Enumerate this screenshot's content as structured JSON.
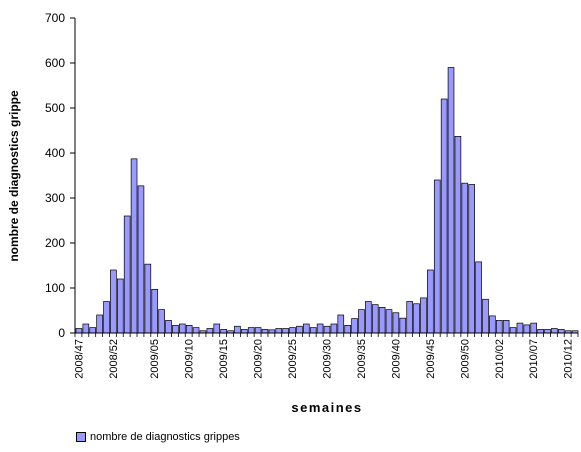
{
  "chart_data": {
    "type": "bar",
    "xlabel": "semaines",
    "ylabel": "nombre de diagnostics grippe",
    "ylim": [
      0,
      700
    ],
    "yticks": [
      0,
      100,
      200,
      300,
      400,
      500,
      600,
      700
    ],
    "bar_color": "#9999ff",
    "grid": false,
    "legend": "bottom-left",
    "series": [
      {
        "name": "nombre de diagnostics grippes",
        "color": "#9999ff"
      }
    ],
    "categories": [
      "2008/47",
      "2008/48",
      "2008/49",
      "2008/50",
      "2008/51",
      "2008/52",
      "2008/53",
      "2009/01",
      "2009/02",
      "2009/03",
      "2009/04",
      "2009/05",
      "2009/06",
      "2009/07",
      "2009/08",
      "2009/09",
      "2009/10",
      "2009/11",
      "2009/12",
      "2009/13",
      "2009/14",
      "2009/15",
      "2009/16",
      "2009/17",
      "2009/18",
      "2009/19",
      "2009/20",
      "2009/21",
      "2009/22",
      "2009/23",
      "2009/24",
      "2009/25",
      "2009/26",
      "2009/27",
      "2009/28",
      "2009/29",
      "2009/30",
      "2009/31",
      "2009/32",
      "2009/33",
      "2009/34",
      "2009/35",
      "2009/36",
      "2009/37",
      "2009/38",
      "2009/39",
      "2009/40",
      "2009/41",
      "2009/42",
      "2009/43",
      "2009/44",
      "2009/45",
      "2009/46",
      "2009/47",
      "2009/48",
      "2009/49",
      "2009/50",
      "2009/51",
      "2009/52",
      "2009/53",
      "2010/01",
      "2010/02",
      "2010/03",
      "2010/04",
      "2010/05",
      "2010/06",
      "2010/07",
      "2010/08",
      "2010/09",
      "2010/10",
      "2010/11",
      "2010/12",
      "2010/13"
    ],
    "values": [
      10,
      20,
      12,
      40,
      70,
      140,
      120,
      260,
      387,
      327,
      153,
      97,
      52,
      28,
      17,
      20,
      17,
      12,
      5,
      10,
      20,
      8,
      5,
      15,
      8,
      12,
      12,
      8,
      7,
      10,
      10,
      12,
      15,
      20,
      12,
      20,
      15,
      20,
      40,
      17,
      32,
      52,
      70,
      63,
      57,
      52,
      45,
      33,
      70,
      65,
      78,
      140,
      340,
      520,
      590,
      437,
      333,
      330,
      158,
      75,
      38,
      28,
      28,
      12,
      22,
      18,
      22,
      8,
      8,
      10,
      8,
      5,
      5
    ],
    "tick_labels": [
      "2008/47",
      "2008/52",
      "2009/05",
      "2009/10",
      "2009/15",
      "2009/20",
      "2009/25",
      "2009/30",
      "2009/35",
      "2009/40",
      "2009/45",
      "2009/50",
      "2010/02",
      "2010/07",
      "2010/12"
    ]
  }
}
